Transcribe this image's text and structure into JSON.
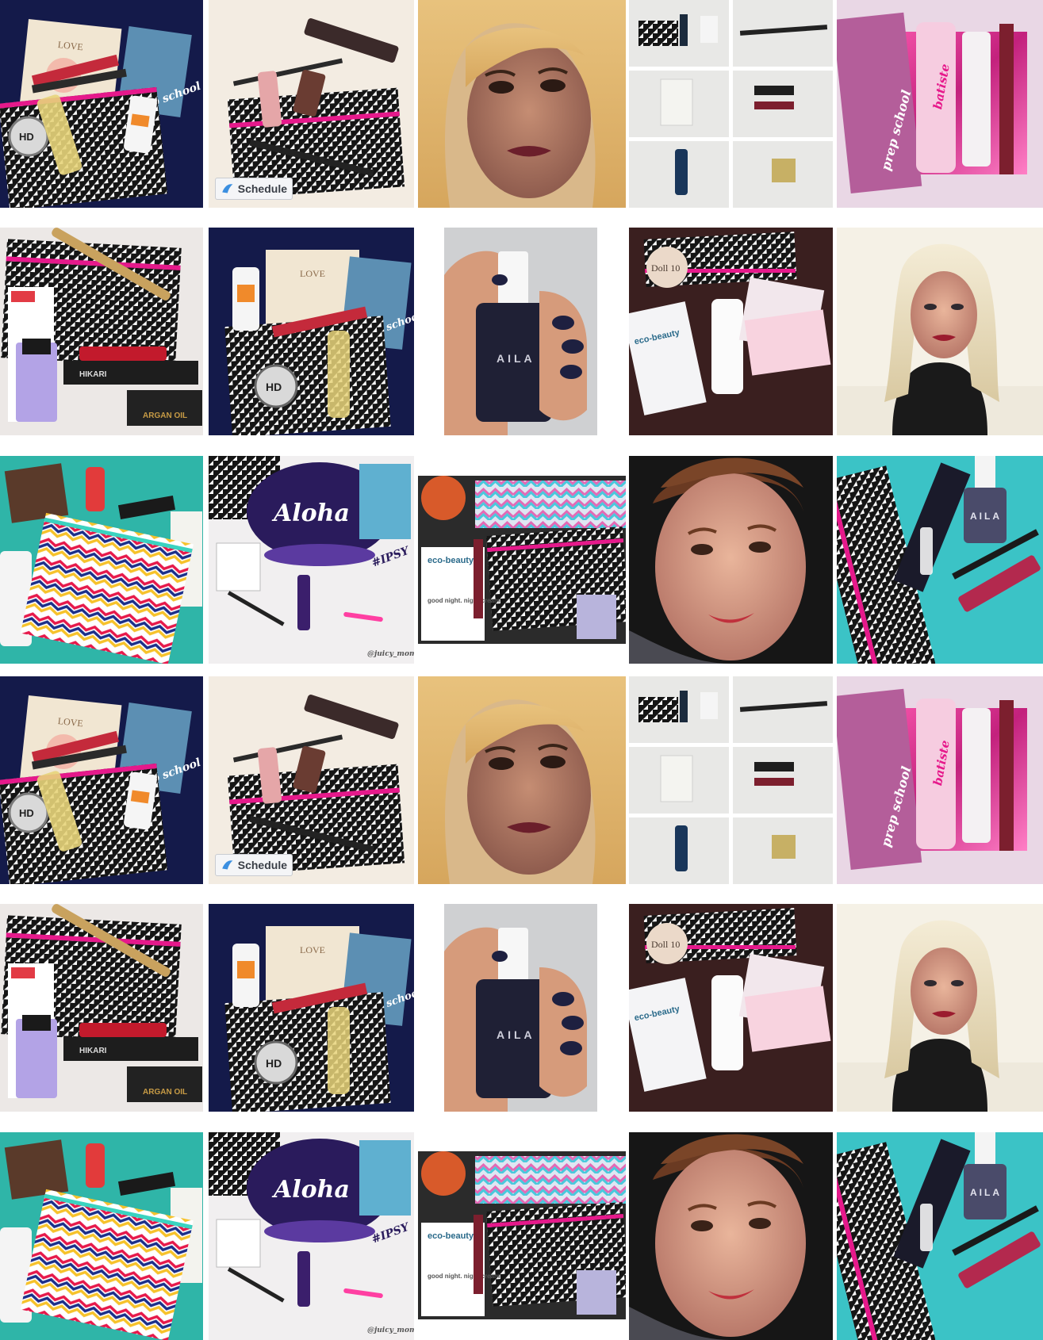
{
  "labels": {
    "love": "LOVE",
    "hikari": "HIKARI",
    "hd": "HD",
    "prep_school": "prep school",
    "schedule": "Schedule",
    "batiste": "batiste",
    "argan_oil": "ARGAN OIL",
    "aila": "AILA",
    "doll10": "Doll 10",
    "eco_beauty": "eco-beauty",
    "good_night_cream": "good night. night cream",
    "aloha": "Aloha",
    "ipsy": "#IPSY",
    "handle": "@juicy_mommah"
  },
  "colors": {
    "navy": "#141a4a",
    "teal": "#2fb5a8",
    "pink": "#e6198b",
    "magenta": "#c3217d",
    "wine": "#7c1f2e",
    "cream": "#f3ece2"
  }
}
